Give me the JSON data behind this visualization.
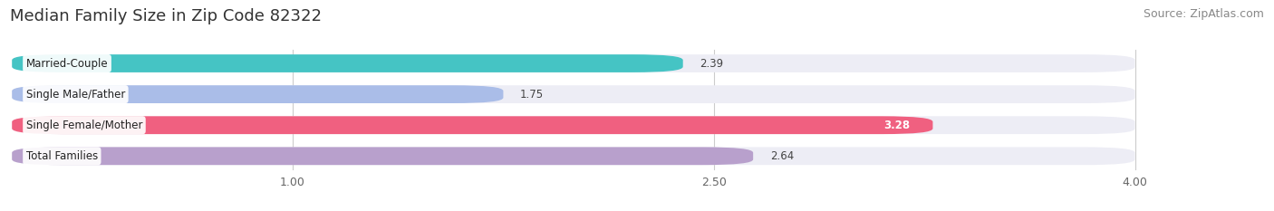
{
  "title": "Median Family Size in Zip Code 82322",
  "source": "Source: ZipAtlas.com",
  "categories": [
    "Married-Couple",
    "Single Male/Father",
    "Single Female/Mother",
    "Total Families"
  ],
  "values": [
    2.39,
    1.75,
    3.28,
    2.64
  ],
  "bar_colors": [
    "#45c4c4",
    "#aabde8",
    "#f06080",
    "#b8a0cc"
  ],
  "bar_bg_color": "#ededf5",
  "xlim_left": 0.0,
  "xlim_right": 4.5,
  "xdata_min": 0.0,
  "xdata_max": 4.0,
  "xticks": [
    1.0,
    2.5,
    4.0
  ],
  "xtick_labels": [
    "1.00",
    "2.50",
    "4.00"
  ],
  "title_fontsize": 13,
  "source_fontsize": 9,
  "label_fontsize": 8.5,
  "value_fontsize": 8.5,
  "background_color": "#ffffff",
  "bar_background_color": "#ededf5"
}
